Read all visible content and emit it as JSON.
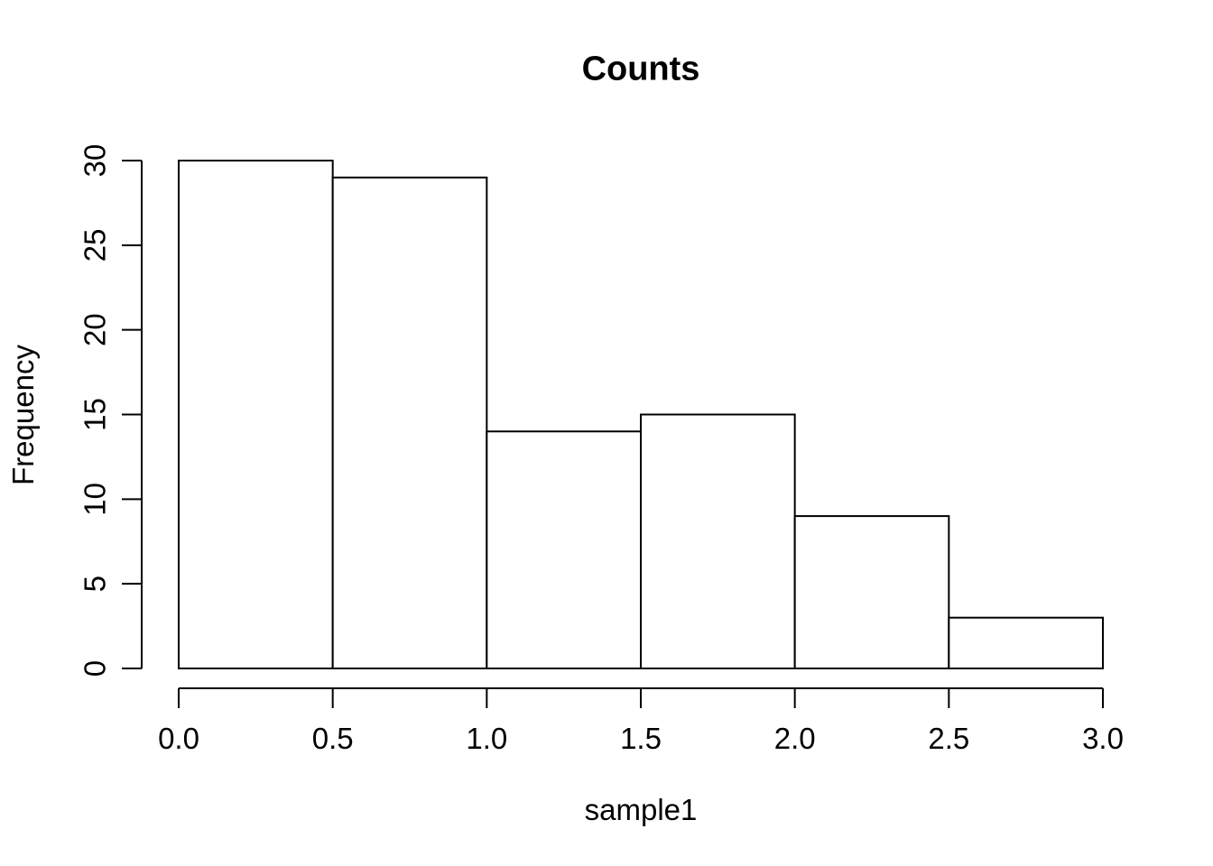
{
  "chart_data": {
    "type": "bar",
    "subtype": "histogram",
    "title": "Counts",
    "xlabel": "sample1",
    "ylabel": "Frequency",
    "bins": [
      {
        "x0": 0.0,
        "x1": 0.5,
        "count": 30
      },
      {
        "x0": 0.5,
        "x1": 1.0,
        "count": 29
      },
      {
        "x0": 1.0,
        "x1": 1.5,
        "count": 14
      },
      {
        "x0": 1.5,
        "x1": 2.0,
        "count": 15
      },
      {
        "x0": 2.0,
        "x1": 2.5,
        "count": 9
      },
      {
        "x0": 2.5,
        "x1": 3.0,
        "count": 3
      }
    ],
    "xlim": [
      0,
      3
    ],
    "ylim": [
      0,
      30
    ],
    "x_ticks": [
      "0.0",
      "0.5",
      "1.0",
      "1.5",
      "2.0",
      "2.5",
      "3.0"
    ],
    "x_tick_values": [
      0,
      0.5,
      1,
      1.5,
      2,
      2.5,
      3
    ],
    "y_ticks": [
      "0",
      "5",
      "10",
      "15",
      "20",
      "25",
      "30"
    ],
    "y_tick_values": [
      0,
      5,
      10,
      15,
      20,
      25,
      30
    ],
    "grid": false,
    "legend": null,
    "colors": {
      "background": "#ffffff",
      "bar_fill": "#ffffff",
      "stroke": "#000000"
    }
  }
}
